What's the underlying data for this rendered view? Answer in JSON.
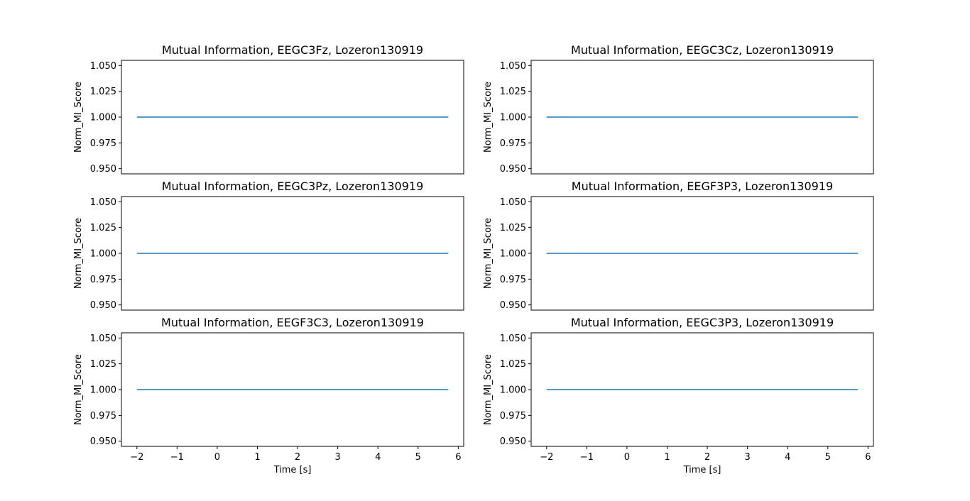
{
  "chart_data": [
    {
      "type": "line",
      "title": "Mutual Information, EEGC3Fz, Lozeron130919",
      "xlabel": "",
      "ylabel": "Norm_MI_Score",
      "xlim": [
        -2.385,
        6.135
      ],
      "ylim": [
        0.945,
        1.055
      ],
      "yticks": [
        "0.950",
        "0.975",
        "1.000",
        "1.025",
        "1.050"
      ],
      "xticks": [],
      "grid": false,
      "series": [
        {
          "color": "#1f77b4",
          "x": [
            -2,
            5.75
          ],
          "y": [
            1.0,
            1.0
          ]
        }
      ]
    },
    {
      "type": "line",
      "title": "Mutual Information, EEGC3Cz, Lozeron130919",
      "xlabel": "",
      "ylabel": "Norm_MI_Score",
      "xlim": [
        -2.385,
        6.135
      ],
      "ylim": [
        0.945,
        1.055
      ],
      "yticks": [
        "0.950",
        "0.975",
        "1.000",
        "1.025",
        "1.050"
      ],
      "xticks": [],
      "grid": false,
      "series": [
        {
          "color": "#1f77b4",
          "x": [
            -2,
            5.75
          ],
          "y": [
            1.0,
            1.0
          ]
        }
      ]
    },
    {
      "type": "line",
      "title": "Mutual Information, EEGC3Pz, Lozeron130919",
      "xlabel": "",
      "ylabel": "Norm_MI_Score",
      "xlim": [
        -2.385,
        6.135
      ],
      "ylim": [
        0.945,
        1.055
      ],
      "yticks": [
        "0.950",
        "0.975",
        "1.000",
        "1.025",
        "1.050"
      ],
      "xticks": [],
      "grid": false,
      "series": [
        {
          "color": "#1f77b4",
          "x": [
            -2,
            5.75
          ],
          "y": [
            1.0,
            1.0
          ]
        }
      ]
    },
    {
      "type": "line",
      "title": "Mutual Information, EEGF3P3, Lozeron130919",
      "xlabel": "",
      "ylabel": "Norm_MI_Score",
      "xlim": [
        -2.385,
        6.135
      ],
      "ylim": [
        0.945,
        1.055
      ],
      "yticks": [
        "0.950",
        "0.975",
        "1.000",
        "1.025",
        "1.050"
      ],
      "xticks": [],
      "grid": false,
      "series": [
        {
          "color": "#1f77b4",
          "x": [
            -2,
            5.75
          ],
          "y": [
            1.0,
            1.0
          ]
        }
      ]
    },
    {
      "type": "line",
      "title": "Mutual Information, EEGF3C3, Lozeron130919",
      "xlabel": "Time [s]",
      "ylabel": "Norm_MI_Score",
      "xlim": [
        -2.385,
        6.135
      ],
      "ylim": [
        0.945,
        1.055
      ],
      "yticks": [
        "0.950",
        "0.975",
        "1.000",
        "1.025",
        "1.050"
      ],
      "xticks": [
        "−2",
        "−1",
        "0",
        "1",
        "2",
        "3",
        "4",
        "5",
        "6"
      ],
      "grid": false,
      "series": [
        {
          "color": "#1f77b4",
          "x": [
            -2,
            5.75
          ],
          "y": [
            1.0,
            1.0
          ]
        }
      ]
    },
    {
      "type": "line",
      "title": "Mutual Information, EEGC3P3, Lozeron130919",
      "xlabel": "Time [s]",
      "ylabel": "Norm_MI_Score",
      "xlim": [
        -2.385,
        6.135
      ],
      "ylim": [
        0.945,
        1.055
      ],
      "yticks": [
        "0.950",
        "0.975",
        "1.000",
        "1.025",
        "1.050"
      ],
      "xticks": [
        "−2",
        "−1",
        "0",
        "1",
        "2",
        "3",
        "4",
        "5",
        "6"
      ],
      "grid": false,
      "series": [
        {
          "color": "#1f77b4",
          "x": [
            -2,
            5.75
          ],
          "y": [
            1.0,
            1.0
          ]
        }
      ]
    }
  ]
}
